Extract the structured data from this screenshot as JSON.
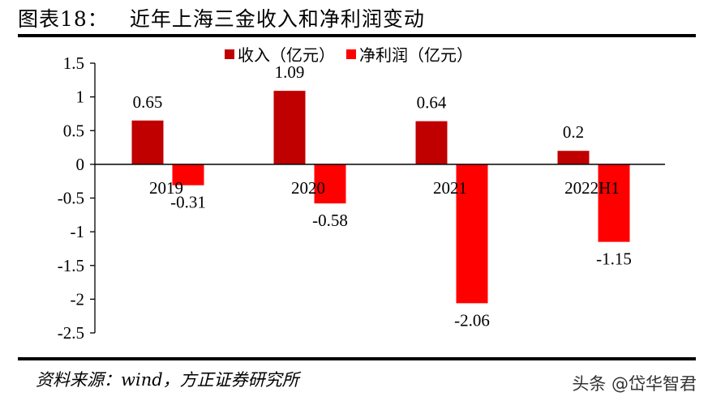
{
  "header": {
    "figure_number": "图表18：",
    "title": "近年上海三金收入和净利润变动"
  },
  "footer": {
    "source": "资料来源：wind，方正证券研究所",
    "watermark": "头条 @岱华智君"
  },
  "colors": {
    "revenue": "#C00000",
    "net_profit": "#FF0000",
    "axis": "#000000"
  },
  "chart_data": {
    "type": "bar",
    "title": "近年上海三金收入和净利润变动",
    "categories": [
      "2019",
      "2020",
      "2021",
      "2022H1"
    ],
    "series": [
      {
        "name": "收入（亿元）",
        "values": [
          0.65,
          1.09,
          0.64,
          0.2
        ],
        "color": "#C00000"
      },
      {
        "name": "净利润（亿元）",
        "values": [
          -0.31,
          -0.58,
          -2.06,
          -1.15
        ],
        "color": "#FF0000"
      }
    ],
    "data_labels": {
      "revenue": [
        "0.65",
        "1.09",
        "0.64",
        "0.2"
      ],
      "net_profit": [
        "-0.31",
        "-0.58",
        "-2.06",
        "-1.15"
      ]
    },
    "xlabel": "",
    "ylabel": "",
    "ylim": [
      -2.5,
      1.5
    ],
    "yticks": [
      1.5,
      1,
      0.5,
      0,
      -0.5,
      -1,
      -1.5,
      -2,
      -2.5
    ],
    "ytick_labels": [
      "1.5",
      "1",
      "0.5",
      "0",
      "-0.5",
      "-1",
      "-1.5",
      "-2",
      "-2.5"
    ],
    "grid": false,
    "legend_position": "top"
  }
}
